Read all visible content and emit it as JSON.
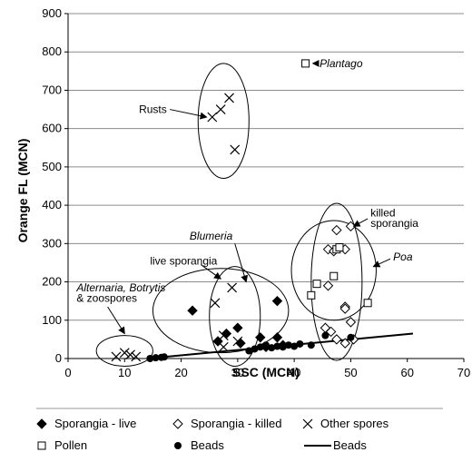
{
  "chart_data": {
    "type": "scatter",
    "xlabel": "SSC (MCN)",
    "ylabel": "Orange FL (MCN)",
    "xlim": [
      0,
      70
    ],
    "ylim": [
      0,
      900
    ],
    "xticks": [
      0,
      10,
      20,
      30,
      40,
      50,
      60,
      70
    ],
    "yticks": [
      0,
      100,
      200,
      300,
      400,
      500,
      600,
      700,
      800,
      900
    ],
    "grid": "horizontal",
    "legend_position": "bottom",
    "series": [
      {
        "name": "Sporangia - live",
        "marker": "filled-diamond",
        "points": [
          [
            22,
            125
          ],
          [
            26.5,
            45
          ],
          [
            28,
            65
          ],
          [
            30,
            80
          ],
          [
            30.5,
            40
          ],
          [
            34,
            55
          ],
          [
            35,
            30
          ],
          [
            37,
            150
          ],
          [
            37,
            55
          ],
          [
            38,
            35
          ]
        ]
      },
      {
        "name": "Sporangia - killed",
        "marker": "open-diamond",
        "points": [
          [
            45.5,
            80
          ],
          [
            46,
            285
          ],
          [
            46.5,
            70
          ],
          [
            47,
            280
          ],
          [
            47.5,
            50
          ],
          [
            47.5,
            335
          ],
          [
            49,
            40
          ],
          [
            49,
            135
          ],
          [
            49,
            130
          ],
          [
            49,
            285
          ],
          [
            50,
            345
          ],
          [
            50,
            95
          ],
          [
            50.5,
            50
          ],
          [
            46,
            190
          ]
        ]
      },
      {
        "name": "Other spores",
        "marker": "x",
        "points": [
          [
            8.5,
            5
          ],
          [
            10,
            15
          ],
          [
            11,
            10
          ],
          [
            12,
            5
          ],
          [
            25.5,
            630
          ],
          [
            27,
            650
          ],
          [
            28.5,
            680
          ],
          [
            29.5,
            545
          ],
          [
            26,
            145
          ],
          [
            29,
            185
          ],
          [
            27.5,
            60
          ],
          [
            27.5,
            30
          ],
          [
            30,
            45
          ]
        ]
      },
      {
        "name": "Pollen",
        "marker": "open-square",
        "points": [
          [
            42,
            770
          ],
          [
            43,
            165
          ],
          [
            44,
            195
          ],
          [
            47,
            215
          ],
          [
            47.5,
            285
          ],
          [
            48,
            290
          ],
          [
            53,
            145
          ]
        ]
      },
      {
        "name": "Beads",
        "marker": "filled-circle",
        "points": [
          [
            14.5,
            0
          ],
          [
            15.5,
            2
          ],
          [
            16.5,
            3
          ],
          [
            17,
            4
          ],
          [
            32,
            20
          ],
          [
            33,
            25
          ],
          [
            34,
            30
          ],
          [
            35,
            35
          ],
          [
            36,
            28
          ],
          [
            37,
            32
          ],
          [
            38,
            30
          ],
          [
            39,
            35
          ],
          [
            40,
            32
          ],
          [
            41,
            38
          ],
          [
            43,
            35
          ],
          [
            45.5,
            60
          ],
          [
            50,
            55
          ]
        ]
      },
      {
        "name": "Beads",
        "marker": "line",
        "points": [
          [
            14,
            0
          ],
          [
            61,
            65
          ]
        ]
      }
    ],
    "annotations": [
      {
        "text": "Plantago",
        "italic": true
      },
      {
        "text": "Rusts",
        "italic": false
      },
      {
        "text": "killed",
        "italic": false
      },
      {
        "text": "sporangia",
        "italic": false
      },
      {
        "text": "Poa",
        "italic": true
      },
      {
        "text": "Blumeria",
        "italic": true
      },
      {
        "text": "live sporangia",
        "italic": false
      },
      {
        "text": "Alternaria, Botrytis",
        "italic": true
      },
      {
        "text": "& zoospores",
        "italic": false
      }
    ],
    "ellipses": [
      {
        "label": "Rusts",
        "cx": 27.5,
        "cy": 620,
        "rx": 4.5,
        "ry": 150
      },
      {
        "label": "Alternaria",
        "cx": 10,
        "cy": 20,
        "rx": 5,
        "ry": 40
      },
      {
        "label": "live sporangia",
        "cx": 27,
        "cy": 125,
        "rx": 12,
        "ry": 110
      },
      {
        "label": "Blumeria",
        "cx": 29.5,
        "cy": 110,
        "rx": 4.5,
        "ry": 130
      },
      {
        "label": "killed sporangia",
        "cx": 47.5,
        "cy": 200,
        "rx": 4.5,
        "ry": 205
      },
      {
        "label": "Poa",
        "cx": 47,
        "cy": 230,
        "rx": 7.5,
        "ry": 130
      }
    ]
  }
}
